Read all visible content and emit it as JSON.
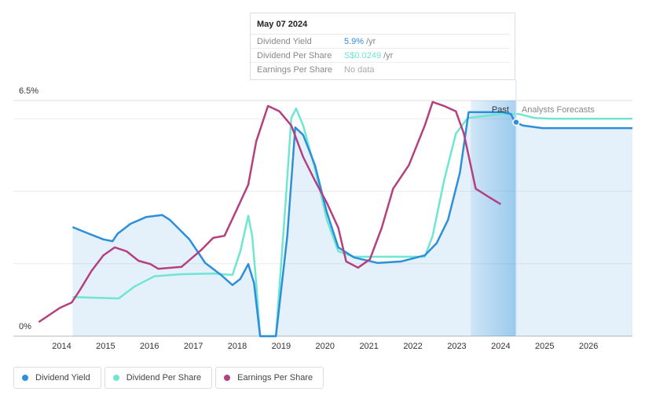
{
  "chart_data": {
    "type": "line",
    "tooltip": {
      "date": "May 07 2024",
      "rows": [
        {
          "label": "Dividend Yield",
          "value": "5.9%",
          "unit": "/yr"
        },
        {
          "label": "Dividend Per Share",
          "value": "S$0.0249",
          "unit": "/yr"
        },
        {
          "label": "Earnings Per Share",
          "value": "No data"
        }
      ]
    },
    "past_label": "Past",
    "forecast_label": "Analysts Forecasts",
    "past_band_start": 2023.32,
    "cursor_x": 2024.35,
    "xlim": [
      2012.9,
      2027.0
    ],
    "xticks": [
      2014,
      2015,
      2016,
      2017,
      2018,
      2019,
      2020,
      2021,
      2022,
      2023,
      2024,
      2025,
      2026
    ],
    "ylim": [
      0,
      6.5
    ],
    "yticks": [
      {
        "value": 0,
        "label": "0%"
      },
      {
        "value": 6.5,
        "label": "6.5%"
      }
    ],
    "gridlines": [
      2,
      4,
      6
    ],
    "series": [
      {
        "name": "Dividend Yield",
        "color": "#2d8fdb",
        "x": [
          2014.25,
          2014.59,
          2014.95,
          2015.16,
          2015.27,
          2015.57,
          2015.93,
          2016.29,
          2016.46,
          2016.91,
          2017.27,
          2017.63,
          2017.89,
          2018.07,
          2018.25,
          2018.38,
          2018.52,
          2018.88,
          2019.14,
          2019.32,
          2019.5,
          2019.77,
          2020.04,
          2020.3,
          2020.66,
          2021.2,
          2021.73,
          2022.27,
          2022.54,
          2022.8,
          2023.07,
          2023.27,
          2024.05,
          2024.23,
          2024.32,
          2024.5,
          2024.95,
          2027.0
        ],
        "values": [
          3.01,
          2.84,
          2.67,
          2.62,
          2.82,
          3.1,
          3.29,
          3.34,
          3.21,
          2.67,
          2.02,
          1.69,
          1.41,
          1.58,
          1.99,
          1.47,
          0,
          0,
          2.77,
          5.76,
          5.55,
          4.72,
          3.42,
          2.45,
          2.17,
          2.02,
          2.06,
          2.23,
          2.56,
          3.21,
          4.51,
          6.18,
          6.18,
          6.13,
          5.92,
          5.81,
          5.74,
          5.74
        ]
      },
      {
        "name": "Dividend Per Share",
        "color": "#6ee6d1",
        "x": [
          2014.25,
          2015.3,
          2015.66,
          2016.11,
          2016.73,
          2017.45,
          2017.89,
          2018.07,
          2018.25,
          2018.34,
          2018.43,
          2018.52,
          2018.88,
          2019.11,
          2019.23,
          2019.34,
          2019.5,
          2019.77,
          2020.04,
          2020.3,
          2020.66,
          2022.27,
          2022.45,
          2022.71,
          2022.98,
          2023.25,
          2024.05,
          2024.41,
          2024.77,
          2025.13,
          2027.0
        ],
        "values": [
          1.08,
          1.04,
          1.37,
          1.65,
          1.71,
          1.73,
          1.69,
          2.34,
          3.32,
          2.77,
          1.47,
          0,
          0,
          3.86,
          6.02,
          6.28,
          5.81,
          4.62,
          3.21,
          2.34,
          2.19,
          2.19,
          2.77,
          4.29,
          5.59,
          6.02,
          6.13,
          6.13,
          6.02,
          6.0,
          6.0
        ]
      },
      {
        "name": "Earnings Per Share",
        "color": "#b5407f",
        "x": [
          2013.48,
          2013.96,
          2014.23,
          2014.41,
          2014.68,
          2014.95,
          2015.21,
          2015.48,
          2015.75,
          2016.02,
          2016.2,
          2016.73,
          2017.18,
          2017.45,
          2017.71,
          2017.98,
          2018.25,
          2018.43,
          2018.7,
          2018.96,
          2019.23,
          2019.5,
          2019.77,
          2020.04,
          2020.3,
          2020.48,
          2020.75,
          2021.02,
          2021.29,
          2021.55,
          2021.91,
          2022.27,
          2022.45,
          2022.71,
          2022.98,
          2023.16,
          2023.43,
          2023.7,
          2024.0
        ],
        "values": [
          0.39,
          0.78,
          0.93,
          1.26,
          1.8,
          2.23,
          2.45,
          2.34,
          2.08,
          1.99,
          1.86,
          1.91,
          2.38,
          2.71,
          2.77,
          3.47,
          4.18,
          5.37,
          6.35,
          6.2,
          5.81,
          4.94,
          4.29,
          3.68,
          2.99,
          2.06,
          1.89,
          2.12,
          2.99,
          4.07,
          4.72,
          5.81,
          6.46,
          6.35,
          6.2,
          5.59,
          4.07,
          3.86,
          3.64
        ]
      }
    ]
  }
}
